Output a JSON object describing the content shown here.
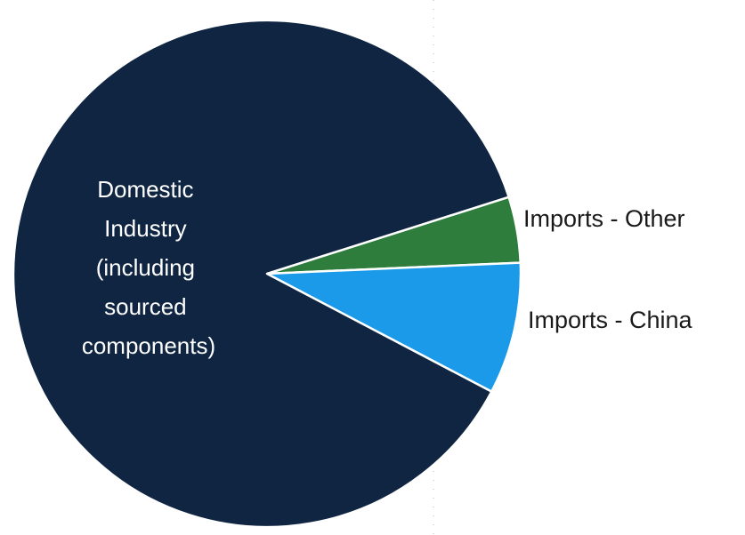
{
  "chart_data": {
    "type": "pie",
    "title": "",
    "slices": [
      {
        "label": "Domestic Industry (including sourced components)",
        "label_lines": [
          "Domestic",
          "Industry",
          "(including",
          "sourced",
          "components)"
        ],
        "value": 87.4,
        "color": "#0f2542",
        "label_position": "inside"
      },
      {
        "label": "Imports - Other",
        "label_lines": [
          "Imports - Other"
        ],
        "value": 4.2,
        "color": "#2e7d3c",
        "label_position": "outside"
      },
      {
        "label": "Imports - China",
        "label_lines": [
          "Imports - China"
        ],
        "value": 8.4,
        "color": "#1a9ae8",
        "label_position": "outside"
      }
    ],
    "legend": "none",
    "value_labels_shown": false
  }
}
